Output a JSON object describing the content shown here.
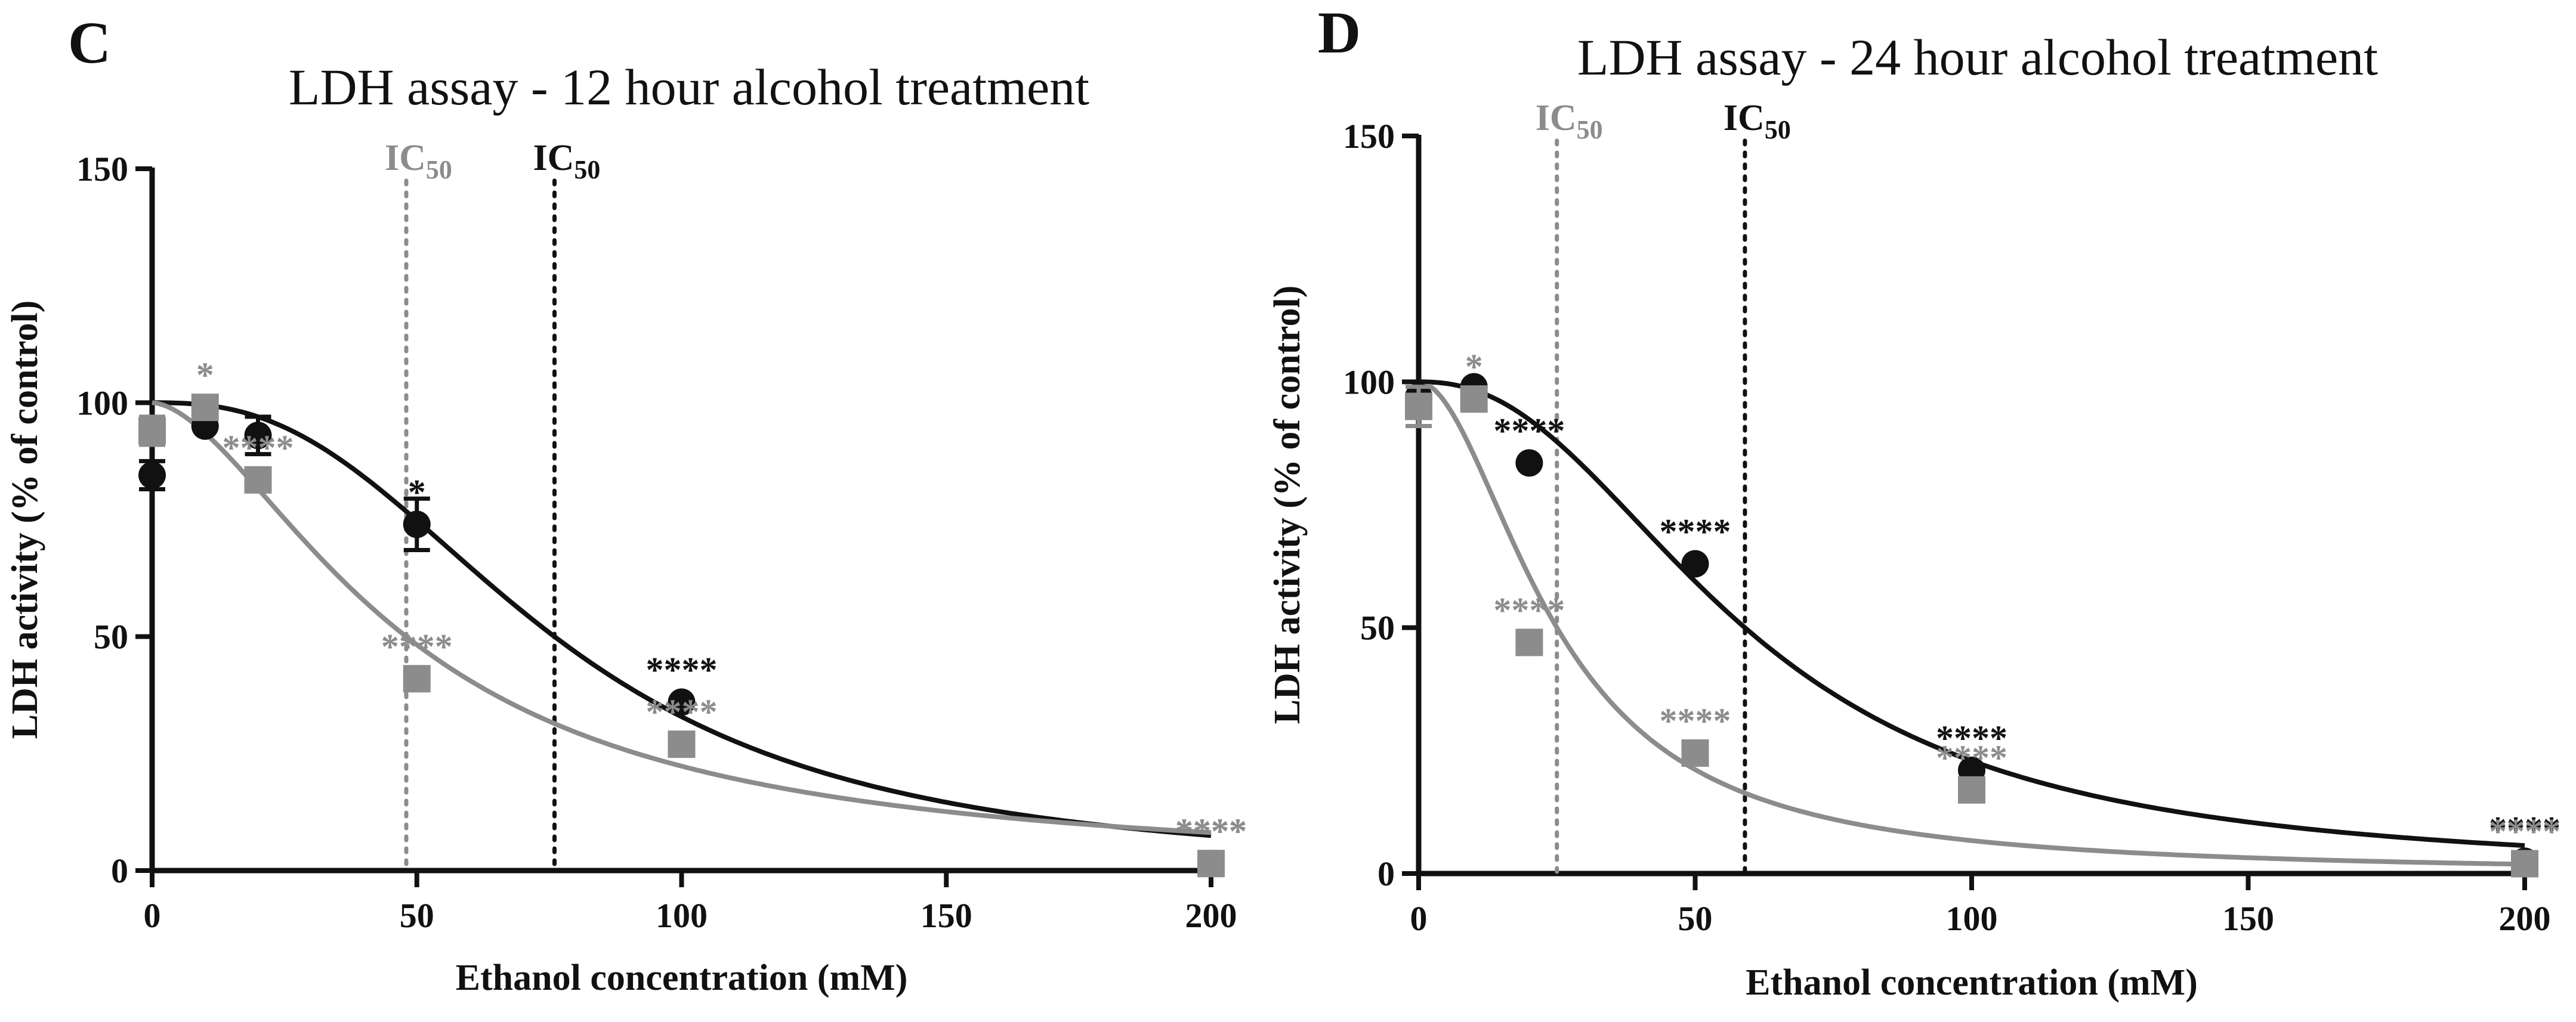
{
  "colors": {
    "black": "#111111",
    "gray": "#8c8c8c"
  },
  "chart_data": [
    {
      "type": "scatter",
      "panel_label": "C",
      "title": "LDH assay - 12 hour alcohol treatment",
      "xlabel": "Ethanol concentration (mM)",
      "ylabel": "LDH activity (% of control)",
      "xlim": [
        0,
        200
      ],
      "ylim": [
        0,
        150
      ],
      "x_ticks": [
        "0",
        "50",
        "100",
        "150",
        "200"
      ],
      "y_ticks": [
        "0",
        "50",
        "100",
        "150"
      ],
      "ic50_lines": [
        {
          "x": 48,
          "color": "gray",
          "label": "IC",
          "sub": "50"
        },
        {
          "x": 76,
          "color": "black",
          "label": "IC",
          "sub": "50"
        }
      ],
      "series": [
        {
          "name": "black-circles",
          "color": "black",
          "marker": "circle",
          "points": [
            {
              "x": 0,
              "y": 84.5,
              "err": 3,
              "sig": ""
            },
            {
              "x": 10,
              "y": 95,
              "err": 0,
              "sig": ""
            },
            {
              "x": 20,
              "y": 93,
              "err": 4,
              "sig": ""
            },
            {
              "x": 50,
              "y": 74,
              "err": 5.5,
              "sig": "*"
            },
            {
              "x": 100,
              "y": 36,
              "err": 0,
              "sig": "****"
            },
            {
              "x": 200,
              "y": 1.5,
              "err": 0,
              "sig": "****"
            }
          ],
          "fit": {
            "top": 100,
            "ic50": 76,
            "hill": 2.6
          }
        },
        {
          "name": "gray-squares",
          "color": "gray",
          "marker": "square",
          "points": [
            {
              "x": 0,
              "y": 94,
              "err": 3,
              "sig": ""
            },
            {
              "x": 10,
              "y": 99,
              "err": 0,
              "sig": "*"
            },
            {
              "x": 20,
              "y": 83.5,
              "err": 0,
              "sig": "****"
            },
            {
              "x": 50,
              "y": 41,
              "err": 0,
              "sig": "****"
            },
            {
              "x": 100,
              "y": 27,
              "err": 0,
              "sig": "****"
            },
            {
              "x": 200,
              "y": 1.5,
              "err": 0,
              "sig": "****"
            }
          ],
          "fit": {
            "top": 100,
            "ic50": 48,
            "hill": 1.7
          }
        }
      ]
    },
    {
      "type": "scatter",
      "panel_label": "D",
      "title": "LDH assay - 24 hour alcohol treatment",
      "xlabel": "Ethanol concentration (mM)",
      "ylabel": "LDH activity (% of control)",
      "xlim": [
        0,
        200
      ],
      "ylim": [
        0,
        150
      ],
      "x_ticks": [
        "0",
        "50",
        "100",
        "150",
        "200"
      ],
      "y_ticks": [
        "0",
        "50",
        "100",
        "150"
      ],
      "ic50_lines": [
        {
          "x": 25,
          "color": "gray",
          "label": "IC",
          "sub": "50"
        },
        {
          "x": 59,
          "color": "black",
          "label": "IC",
          "sub": "50"
        }
      ],
      "series": [
        {
          "name": "black-circles",
          "color": "black",
          "marker": "circle",
          "points": [
            {
              "x": 0,
              "y": 97,
              "err": 3,
              "sig": ""
            },
            {
              "x": 10,
              "y": 99,
              "err": 0,
              "sig": ""
            },
            {
              "x": 20,
              "y": 83.5,
              "err": 0,
              "sig": "****"
            },
            {
              "x": 50,
              "y": 63,
              "err": 0,
              "sig": "****"
            },
            {
              "x": 100,
              "y": 21,
              "err": 0,
              "sig": "****"
            },
            {
              "x": 200,
              "y": 2.5,
              "err": 0,
              "sig": "****"
            }
          ],
          "fit": {
            "top": 100,
            "ic50": 59,
            "hill": 2.3
          }
        },
        {
          "name": "gray-squares",
          "color": "gray",
          "marker": "square",
          "points": [
            {
              "x": 0,
              "y": 95,
              "err": 4,
              "sig": ""
            },
            {
              "x": 10,
              "y": 96.5,
              "err": 0,
              "sig": "*"
            },
            {
              "x": 20,
              "y": 47,
              "err": 0,
              "sig": "****"
            },
            {
              "x": 50,
              "y": 24.5,
              "err": 0,
              "sig": "****"
            },
            {
              "x": 100,
              "y": 17,
              "err": 0,
              "sig": "****"
            },
            {
              "x": 200,
              "y": 2,
              "err": 0,
              "sig": "****"
            }
          ],
          "fit": {
            "top": 100,
            "ic50": 25,
            "hill": 1.9
          }
        }
      ]
    }
  ]
}
